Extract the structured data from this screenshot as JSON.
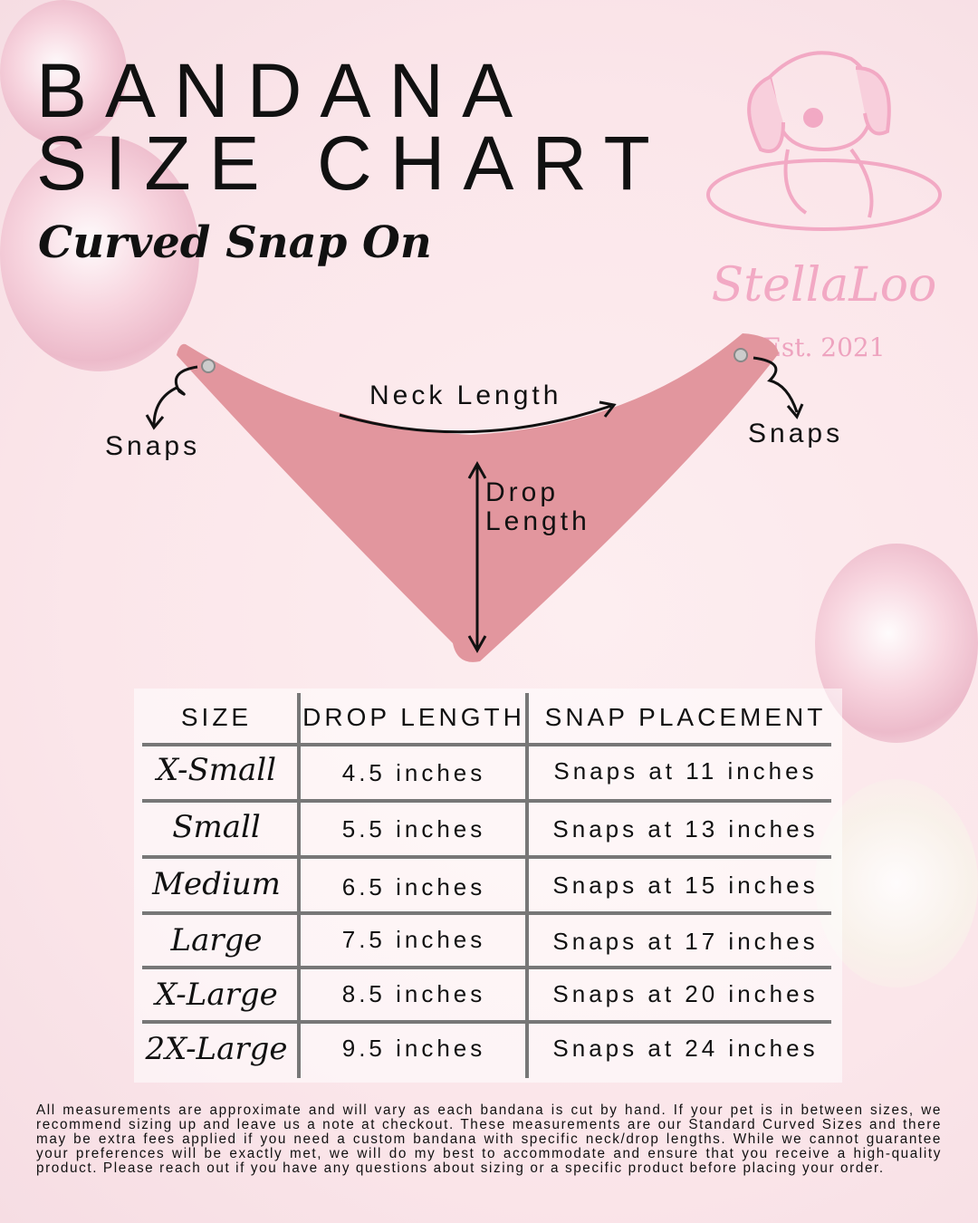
{
  "title": "BANDANA SIZE CHART",
  "subtitle": "Curved Snap On",
  "logo": {
    "name": "StellaLoo",
    "established": "Est. 2021",
    "color": "#f2a9c4"
  },
  "diagram": {
    "snaps_left": "Snaps",
    "snaps_right": "Snaps",
    "neck_length": "Neck Length",
    "drop_length_line1": "Drop",
    "drop_length_line2": "Length",
    "bandana_color": "#e2969e"
  },
  "table": {
    "headers": [
      "SIZE",
      "DROP LENGTH",
      "SNAP PLACEMENT"
    ],
    "rows": [
      {
        "size": "X-Small",
        "drop": "4.5 inches",
        "snap": "Snaps at 11 inches"
      },
      {
        "size": "Small",
        "drop": "5.5 inches",
        "snap": "Snaps at 13 inches"
      },
      {
        "size": "Medium",
        "drop": "6.5 inches",
        "snap": "Snaps at 15 inches"
      },
      {
        "size": "Large",
        "drop": "7.5 inches",
        "snap": "Snaps at 17 inches"
      },
      {
        "size": "X-Large",
        "drop": "8.5 inches",
        "snap": "Snaps at 20 inches"
      },
      {
        "size": "2X-Large",
        "drop": "9.5 inches",
        "snap": "Snaps at 24 inches"
      }
    ]
  },
  "footer": "All measurements are approximate and will vary as each bandana is cut by hand. If your pet is in between sizes, we recommend sizing up and leave us a note at checkout. These measurements are our Standard Curved Sizes and there may be extra fees applied if you need a custom bandana with specific neck/drop lengths. While we cannot guarantee your preferences will be exactly met, we will do my best to accommodate and ensure that you receive a high-quality product. Please reach out if you have any questions about sizing or a specific product before placing your order."
}
